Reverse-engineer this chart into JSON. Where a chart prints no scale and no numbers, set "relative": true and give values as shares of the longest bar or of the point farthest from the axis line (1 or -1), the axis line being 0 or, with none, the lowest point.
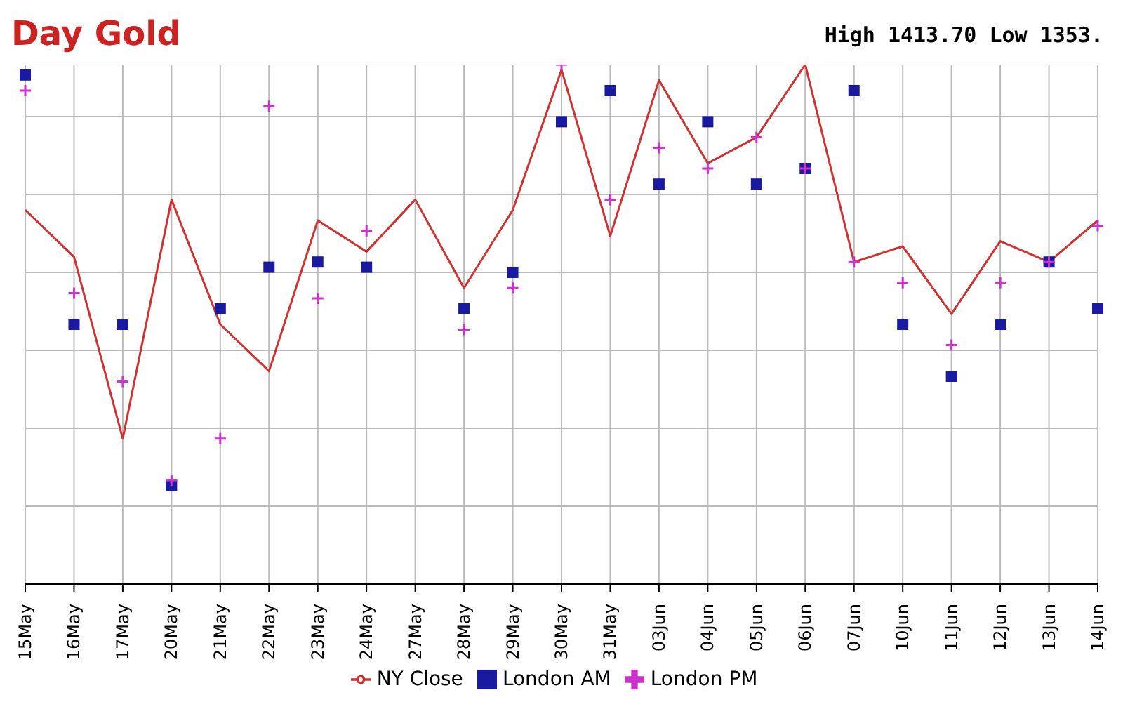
{
  "chart_data": {
    "type": "line",
    "title": "Day Gold",
    "annotations": [
      "High 1413.70 Low 1353."
    ],
    "relative": true,
    "grid": true,
    "legend": "bottom",
    "categories": [
      "15May",
      "16May",
      "17May",
      "20May",
      "21May",
      "22May",
      "23May",
      "24May",
      "27May",
      "28May",
      "29May",
      "30May",
      "31May",
      "03Jun",
      "04Jun",
      "05Jun",
      "06Jun",
      "07Jun",
      "10Jun",
      "11Jun",
      "12Jun",
      "13Jun",
      "14Jun"
    ],
    "series": [
      {
        "name": "NY Close",
        "marker": "none",
        "color": "#cc3333",
        "values": [
          0.72,
          0.63,
          0.28,
          0.74,
          0.5,
          0.41,
          0.7,
          0.64,
          0.74,
          0.57,
          0.72,
          0.99,
          0.67,
          0.97,
          0.81,
          0.86,
          1.0,
          0.62,
          0.65,
          0.52,
          0.66,
          0.62,
          0.7
        ]
      },
      {
        "name": "London AM",
        "type": "scatter",
        "marker": "square",
        "color": "#1a1aa0",
        "values": [
          0.98,
          0.5,
          0.5,
          0.19,
          0.53,
          0.61,
          0.62,
          0.61,
          null,
          0.53,
          0.6,
          0.89,
          0.95,
          0.77,
          0.89,
          0.77,
          0.8,
          0.95,
          0.5,
          0.4,
          0.5,
          0.62,
          0.53
        ]
      },
      {
        "name": "London PM",
        "type": "scatter",
        "marker": "cross",
        "color": "#cc33cc",
        "values": [
          0.95,
          0.56,
          0.39,
          0.2,
          0.28,
          0.92,
          0.55,
          0.68,
          null,
          0.49,
          0.57,
          1.0,
          0.74,
          0.84,
          0.8,
          0.86,
          0.8,
          0.62,
          0.58,
          0.46,
          0.58,
          0.62,
          0.69
        ]
      }
    ]
  }
}
